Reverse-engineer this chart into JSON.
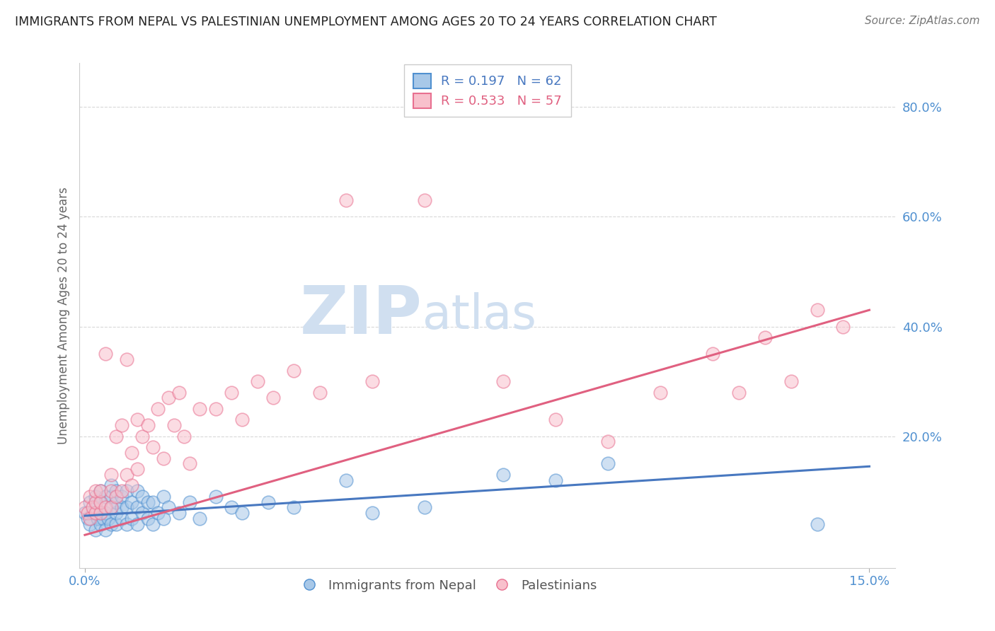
{
  "title": "IMMIGRANTS FROM NEPAL VS PALESTINIAN UNEMPLOYMENT AMONG AGES 20 TO 24 YEARS CORRELATION CHART",
  "source": "Source: ZipAtlas.com",
  "ylabel": "Unemployment Among Ages 20 to 24 years",
  "xlim": [
    -0.001,
    0.155
  ],
  "ylim": [
    -0.04,
    0.88
  ],
  "xticks": [
    0.0,
    0.15
  ],
  "xtick_labels": [
    "0.0%",
    "15.0%"
  ],
  "yticks_right": [
    0.2,
    0.4,
    0.6,
    0.8
  ],
  "ytick_labels_right": [
    "20.0%",
    "40.0%",
    "60.0%",
    "80.0%"
  ],
  "R_blue": 0.197,
  "N_blue": 62,
  "R_pink": 0.533,
  "N_pink": 57,
  "blue_fill": "#a8c8e8",
  "pink_fill": "#f8c0cc",
  "blue_edge": "#5090d0",
  "pink_edge": "#e87090",
  "blue_line_color": "#4878c0",
  "pink_line_color": "#e06080",
  "tick_label_color": "#5090d0",
  "watermark_zip": "ZIP",
  "watermark_atlas": "atlas",
  "watermark_color": "#d0dff0",
  "grid_color": "#d8d8d8",
  "background_color": "#ffffff",
  "blue_trend_x0": 0.0,
  "blue_trend_y0": 0.055,
  "blue_trend_x1": 0.15,
  "blue_trend_y1": 0.145,
  "pink_trend_x0": 0.0,
  "pink_trend_y0": 0.02,
  "pink_trend_x1": 0.15,
  "pink_trend_y1": 0.43,
  "nepal_x": [
    0.0,
    0.0005,
    0.001,
    0.001,
    0.0015,
    0.002,
    0.002,
    0.002,
    0.0025,
    0.003,
    0.003,
    0.003,
    0.003,
    0.0035,
    0.004,
    0.004,
    0.004,
    0.0045,
    0.005,
    0.005,
    0.005,
    0.005,
    0.006,
    0.006,
    0.006,
    0.006,
    0.007,
    0.007,
    0.007,
    0.008,
    0.008,
    0.008,
    0.009,
    0.009,
    0.01,
    0.01,
    0.01,
    0.011,
    0.011,
    0.012,
    0.012,
    0.013,
    0.013,
    0.014,
    0.015,
    0.015,
    0.016,
    0.018,
    0.02,
    0.022,
    0.025,
    0.028,
    0.03,
    0.035,
    0.04,
    0.05,
    0.055,
    0.065,
    0.08,
    0.09,
    0.1,
    0.14
  ],
  "nepal_y": [
    0.06,
    0.05,
    0.04,
    0.08,
    0.06,
    0.03,
    0.07,
    0.09,
    0.05,
    0.04,
    0.06,
    0.08,
    0.1,
    0.05,
    0.03,
    0.06,
    0.09,
    0.05,
    0.04,
    0.07,
    0.09,
    0.11,
    0.04,
    0.06,
    0.08,
    0.1,
    0.05,
    0.07,
    0.09,
    0.04,
    0.07,
    0.1,
    0.05,
    0.08,
    0.04,
    0.07,
    0.1,
    0.06,
    0.09,
    0.05,
    0.08,
    0.04,
    0.08,
    0.06,
    0.05,
    0.09,
    0.07,
    0.06,
    0.08,
    0.05,
    0.09,
    0.07,
    0.06,
    0.08,
    0.07,
    0.12,
    0.06,
    0.07,
    0.13,
    0.12,
    0.15,
    0.04
  ],
  "pale_x": [
    0.0,
    0.0005,
    0.001,
    0.001,
    0.0015,
    0.002,
    0.002,
    0.002,
    0.003,
    0.003,
    0.003,
    0.004,
    0.004,
    0.005,
    0.005,
    0.005,
    0.006,
    0.006,
    0.007,
    0.007,
    0.008,
    0.008,
    0.009,
    0.009,
    0.01,
    0.01,
    0.011,
    0.012,
    0.013,
    0.014,
    0.015,
    0.016,
    0.017,
    0.018,
    0.019,
    0.02,
    0.022,
    0.025,
    0.028,
    0.03,
    0.033,
    0.036,
    0.04,
    0.045,
    0.05,
    0.055,
    0.065,
    0.08,
    0.09,
    0.1,
    0.11,
    0.12,
    0.125,
    0.13,
    0.135,
    0.14,
    0.145
  ],
  "pale_y": [
    0.07,
    0.06,
    0.05,
    0.09,
    0.07,
    0.06,
    0.08,
    0.1,
    0.06,
    0.08,
    0.1,
    0.07,
    0.35,
    0.07,
    0.1,
    0.13,
    0.09,
    0.2,
    0.1,
    0.22,
    0.13,
    0.34,
    0.11,
    0.17,
    0.14,
    0.23,
    0.2,
    0.22,
    0.18,
    0.25,
    0.16,
    0.27,
    0.22,
    0.28,
    0.2,
    0.15,
    0.25,
    0.25,
    0.28,
    0.23,
    0.3,
    0.27,
    0.32,
    0.28,
    0.63,
    0.3,
    0.63,
    0.3,
    0.23,
    0.19,
    0.28,
    0.35,
    0.28,
    0.38,
    0.3,
    0.43,
    0.4
  ]
}
